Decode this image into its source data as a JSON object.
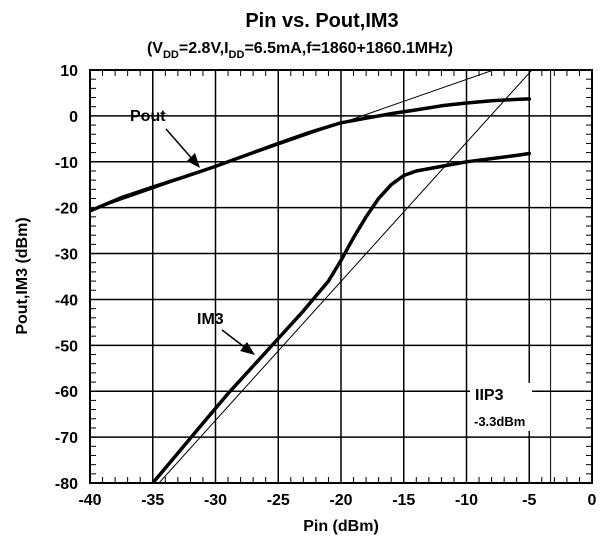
{
  "chart_data": {
    "type": "line",
    "title": "Pin vs. Pout,IM3",
    "subtitle": {
      "p1": "(V",
      "s1": "DD",
      "p2": "=2.8V,I",
      "s2": "DD",
      "p3": "=6.5mA,f=1860+1860.1MHz)"
    },
    "xlabel": "Pin (dBm)",
    "ylabel": "Pout,IM3 (dBm)",
    "xlim": [
      -40,
      0
    ],
    "ylim": [
      -80,
      10
    ],
    "grid": true,
    "x_ticks": [
      -40,
      -35,
      -30,
      -25,
      -20,
      -15,
      -10,
      -5,
      0
    ],
    "y_ticks": [
      -80,
      -70,
      -60,
      -50,
      -40,
      -30,
      -20,
      -10,
      0,
      10
    ],
    "series": [
      {
        "name": "Pout",
        "x": [
          -40,
          -37.5,
          -35,
          -32.5,
          -30,
          -27.5,
          -25,
          -22.5,
          -20,
          -18,
          -16,
          -14,
          -12,
          -10,
          -8,
          -6,
          -5
        ],
        "y": [
          -20.7,
          -17.8,
          -15.5,
          -13.3,
          -11,
          -8.5,
          -6,
          -3.6,
          -1.5,
          -0.5,
          0.5,
          1.3,
          2.2,
          2.8,
          3.3,
          3.6,
          3.7
        ]
      },
      {
        "name": "IM3",
        "x": [
          -35,
          -33,
          -31,
          -29,
          -27,
          -25,
          -23,
          -21,
          -20,
          -19,
          -18,
          -17,
          -16,
          -15,
          -14,
          -12,
          -10,
          -8,
          -6,
          -5
        ],
        "y": [
          -80,
          -73.5,
          -67,
          -60.5,
          -54.5,
          -48.5,
          -42.5,
          -36,
          -31.5,
          -26.5,
          -22,
          -18,
          -15,
          -13,
          -12,
          -11,
          -10,
          -9.3,
          -8.6,
          -8.2
        ]
      }
    ],
    "extrapolation_lines": [
      {
        "x": [
          -40,
          0
        ],
        "y": [
          -20.7,
          17.5
        ]
      },
      {
        "x": [
          -35,
          0
        ],
        "y": [
          -81.5,
          24.5
        ]
      }
    ],
    "marker_line_x": -3.3,
    "annotations": {
      "pout_label": "Pout",
      "im3_label": "IM3",
      "iip3_label": "IIP3",
      "iip3_value": "-3.3dBm"
    }
  }
}
